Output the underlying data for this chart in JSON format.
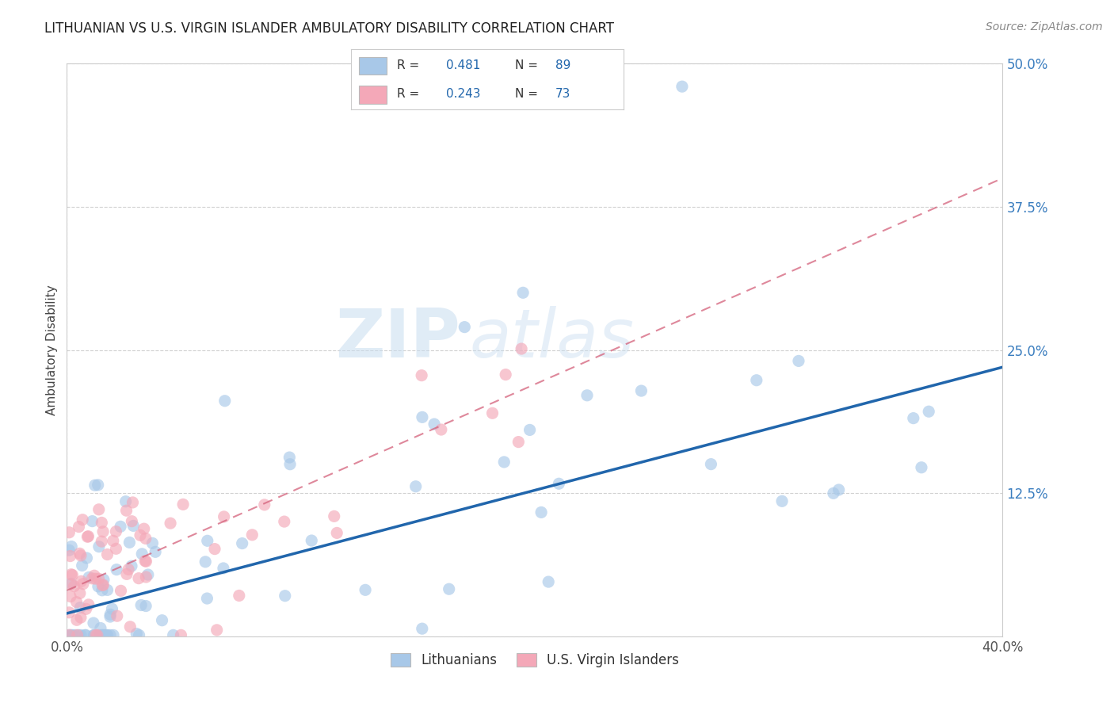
{
  "title": "LITHUANIAN VS U.S. VIRGIN ISLANDER AMBULATORY DISABILITY CORRELATION CHART",
  "source": "Source: ZipAtlas.com",
  "ylabel": "Ambulatory Disability",
  "xlim": [
    0.0,
    0.4
  ],
  "ylim": [
    0.0,
    0.5
  ],
  "xtick_positions": [
    0.0,
    0.4
  ],
  "xtick_labels": [
    "0.0%",
    "40.0%"
  ],
  "ytick_positions": [
    0.0,
    0.125,
    0.25,
    0.375,
    0.5
  ],
  "ytick_labels": [
    "",
    "12.5%",
    "25.0%",
    "37.5%",
    "50.0%"
  ],
  "blue_color": "#a8c8e8",
  "pink_color": "#f4a8b8",
  "blue_line_color": "#2166ac",
  "pink_line_color": "#d4607a",
  "legend_blue_label": "Lithuanians",
  "legend_pink_label": "U.S. Virgin Islanders",
  "R_blue": 0.481,
  "N_blue": 89,
  "R_pink": 0.243,
  "N_pink": 73,
  "watermark_zip": "ZIP",
  "watermark_atlas": "atlas",
  "background_color": "#ffffff",
  "grid_color": "#cccccc",
  "blue_trend_x0": 0.0,
  "blue_trend_y0": 0.02,
  "blue_trend_x1": 0.4,
  "blue_trend_y1": 0.235,
  "pink_trend_x0": 0.0,
  "pink_trend_y0": 0.04,
  "pink_trend_x1": 0.4,
  "pink_trend_y1": 0.4
}
